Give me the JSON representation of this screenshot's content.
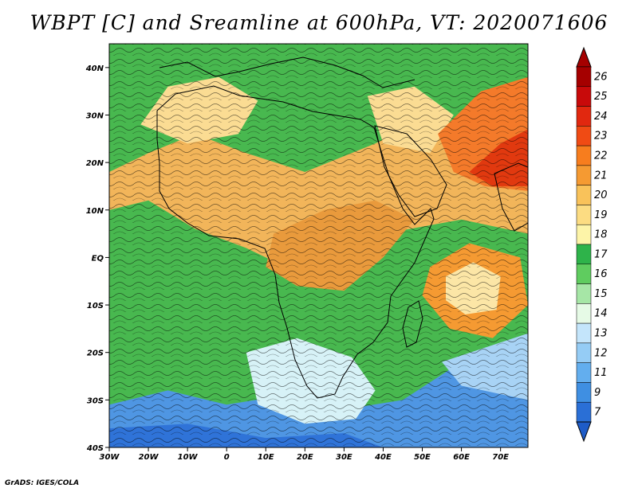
{
  "title": "WBPT [C] and Sreamline at 600hPa, VT: 2020071606",
  "credit": "GrADS: IGES/COLA",
  "map": {
    "lon_range": [
      -30,
      77
    ],
    "lat_range": [
      -40,
      45
    ],
    "lon_ticks": [
      {
        "value": -30,
        "label": "30W"
      },
      {
        "value": -20,
        "label": "20W"
      },
      {
        "value": -10,
        "label": "10W"
      },
      {
        "value": 0,
        "label": "0"
      },
      {
        "value": 10,
        "label": "10E"
      },
      {
        "value": 20,
        "label": "20E"
      },
      {
        "value": 30,
        "label": "30E"
      },
      {
        "value": 40,
        "label": "40E"
      },
      {
        "value": 50,
        "label": "50E"
      },
      {
        "value": 60,
        "label": "60E"
      },
      {
        "value": 70,
        "label": "70E"
      }
    ],
    "lat_ticks": [
      {
        "value": 40,
        "label": "40N"
      },
      {
        "value": 30,
        "label": "30N"
      },
      {
        "value": 20,
        "label": "20N"
      },
      {
        "value": 10,
        "label": "10N"
      },
      {
        "value": 0,
        "label": "EQ"
      },
      {
        "value": -10,
        "label": "10S"
      },
      {
        "value": -20,
        "label": "20S"
      },
      {
        "value": -30,
        "label": "30S"
      },
      {
        "value": -40,
        "label": "40S"
      }
    ]
  },
  "colorbar": {
    "levels": [
      {
        "label": "26",
        "color": "#a50000"
      },
      {
        "label": "25",
        "color": "#c80a0a"
      },
      {
        "label": "24",
        "color": "#e1280f"
      },
      {
        "label": "23",
        "color": "#f04b14"
      },
      {
        "label": "22",
        "color": "#f77d1e"
      },
      {
        "label": "21",
        "color": "#f59a32"
      },
      {
        "label": "20",
        "color": "#f9c25a"
      },
      {
        "label": "19",
        "color": "#fcdc82"
      },
      {
        "label": "18",
        "color": "#fdf4a8"
      },
      {
        "label": "17",
        "color": "#2eb34a"
      },
      {
        "label": "16",
        "color": "#5fcc5f"
      },
      {
        "label": "15",
        "color": "#a6e6a6"
      },
      {
        "label": "14",
        "color": "#e6fae6"
      },
      {
        "label": "13",
        "color": "#c4e5fb"
      },
      {
        "label": "12",
        "color": "#95ccf5"
      },
      {
        "label": "11",
        "color": "#63aeee"
      },
      {
        "label": "9",
        "color": "#3f8fe2"
      },
      {
        "label": "7",
        "color": "#2a6fd6"
      }
    ],
    "bottom_color": "#1e5cc8"
  },
  "regions": [
    {
      "name": "south-cold-band",
      "color": "#4f96e3",
      "points": [
        [
          -30,
          -40
        ],
        [
          77,
          -40
        ],
        [
          77,
          -26
        ],
        [
          60,
          -22
        ],
        [
          45,
          -30
        ],
        [
          30,
          -32
        ],
        [
          15,
          -29
        ],
        [
          0,
          -31
        ],
        [
          -15,
          -28
        ],
        [
          -30,
          -31
        ]
      ]
    },
    {
      "name": "far-south-deep",
      "color": "#2f73d8",
      "points": [
        [
          -30,
          -40
        ],
        [
          40,
          -40
        ],
        [
          30,
          -37
        ],
        [
          10,
          -38
        ],
        [
          -10,
          -35
        ],
        [
          -30,
          -36
        ]
      ]
    },
    {
      "name": "southern-africa-cool",
      "color": "#d7f2f7",
      "points": [
        [
          5,
          -20
        ],
        [
          18,
          -17
        ],
        [
          32,
          -21
        ],
        [
          38,
          -28
        ],
        [
          33,
          -34
        ],
        [
          20,
          -35
        ],
        [
          8,
          -31
        ]
      ]
    },
    {
      "name": "south-ocean-light",
      "color": "#a8d3f5",
      "points": [
        [
          55,
          -22
        ],
        [
          77,
          -16
        ],
        [
          77,
          -30
        ],
        [
          60,
          -27
        ]
      ]
    },
    {
      "name": "sahara-warm",
      "color": "#f2b55a",
      "points": [
        [
          -30,
          18
        ],
        [
          -20,
          22
        ],
        [
          -8,
          26
        ],
        [
          5,
          22
        ],
        [
          20,
          18
        ],
        [
          38,
          24
        ],
        [
          48,
          28
        ],
        [
          60,
          26
        ],
        [
          77,
          30
        ],
        [
          77,
          5
        ],
        [
          60,
          8
        ],
        [
          40,
          5
        ],
        [
          28,
          0
        ],
        [
          15,
          -2
        ],
        [
          5,
          2
        ],
        [
          -8,
          6
        ],
        [
          -20,
          12
        ],
        [
          -30,
          10
        ]
      ]
    },
    {
      "name": "central-africa-warm",
      "color": "#e99a3c",
      "points": [
        [
          12,
          5
        ],
        [
          25,
          10
        ],
        [
          38,
          12
        ],
        [
          48,
          8
        ],
        [
          40,
          0
        ],
        [
          30,
          -7
        ],
        [
          18,
          -6
        ],
        [
          10,
          -2
        ]
      ]
    },
    {
      "name": "north-africa-pale",
      "color": "#fbdc93",
      "points": [
        [
          -22,
          28
        ],
        [
          -15,
          36
        ],
        [
          -2,
          38
        ],
        [
          8,
          33
        ],
        [
          3,
          26
        ],
        [
          -10,
          24
        ]
      ]
    },
    {
      "name": "arabia-pale",
      "color": "#fbdc93",
      "points": [
        [
          36,
          34
        ],
        [
          48,
          36
        ],
        [
          58,
          30
        ],
        [
          52,
          22
        ],
        [
          40,
          24
        ]
      ]
    },
    {
      "name": "iran-hot",
      "color": "#f47a2a",
      "points": [
        [
          54,
          26
        ],
        [
          65,
          35
        ],
        [
          77,
          38
        ],
        [
          77,
          14
        ],
        [
          66,
          15
        ],
        [
          58,
          18
        ]
      ]
    },
    {
      "name": "india-red",
      "color": "#e1390f",
      "points": [
        [
          62,
          18
        ],
        [
          70,
          24
        ],
        [
          77,
          27
        ],
        [
          77,
          15
        ],
        [
          68,
          15
        ]
      ]
    },
    {
      "name": "indian-ocean-vortex",
      "color": "#f59a32",
      "points": [
        [
          52,
          -2
        ],
        [
          62,
          3
        ],
        [
          75,
          0
        ],
        [
          77,
          -10
        ],
        [
          68,
          -17
        ],
        [
          57,
          -15
        ],
        [
          50,
          -8
        ]
      ]
    },
    {
      "name": "indian-ocean-pale",
      "color": "#fce6a6",
      "points": [
        [
          56,
          -4
        ],
        [
          63,
          -1
        ],
        [
          70,
          -4
        ],
        [
          69,
          -11
        ],
        [
          61,
          -12
        ],
        [
          56,
          -9
        ]
      ]
    }
  ]
}
